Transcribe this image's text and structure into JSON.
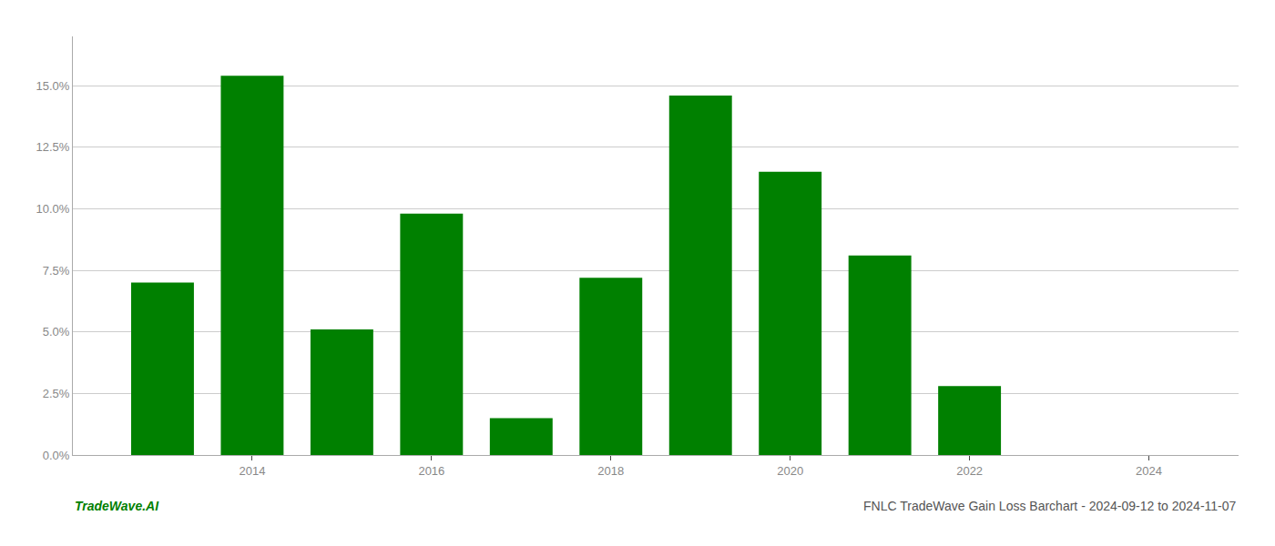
{
  "chart_data": {
    "type": "bar",
    "title": "FNLC TradeWave Gain Loss Barchart - 2024-09-12 to 2024-11-07",
    "annotations": [
      "TradeWave.AI"
    ],
    "x": [
      2013,
      2014,
      2015,
      2016,
      2017,
      2018,
      2019,
      2020,
      2021,
      2022,
      2023
    ],
    "values": [
      0.07,
      0.154,
      0.051,
      0.098,
      0.015,
      0.072,
      0.146,
      0.115,
      0.081,
      0.028,
      0.0
    ],
    "color": "#008000",
    "xlim": [
      2012.0,
      2025.0
    ],
    "xticks": [
      2014,
      2016,
      2018,
      2020,
      2022,
      2024
    ],
    "ylim": [
      0,
      0.17
    ],
    "yticks": [
      {
        "value": 0.0,
        "label": "0.0%"
      },
      {
        "value": 0.025,
        "label": "2.5%"
      },
      {
        "value": 0.05,
        "label": "5.0%"
      },
      {
        "value": 0.075,
        "label": "7.5%"
      },
      {
        "value": 0.1,
        "label": "10.0%"
      },
      {
        "value": 0.125,
        "label": "12.5%"
      },
      {
        "value": 0.15,
        "label": "15.0%"
      }
    ],
    "grid": true
  }
}
